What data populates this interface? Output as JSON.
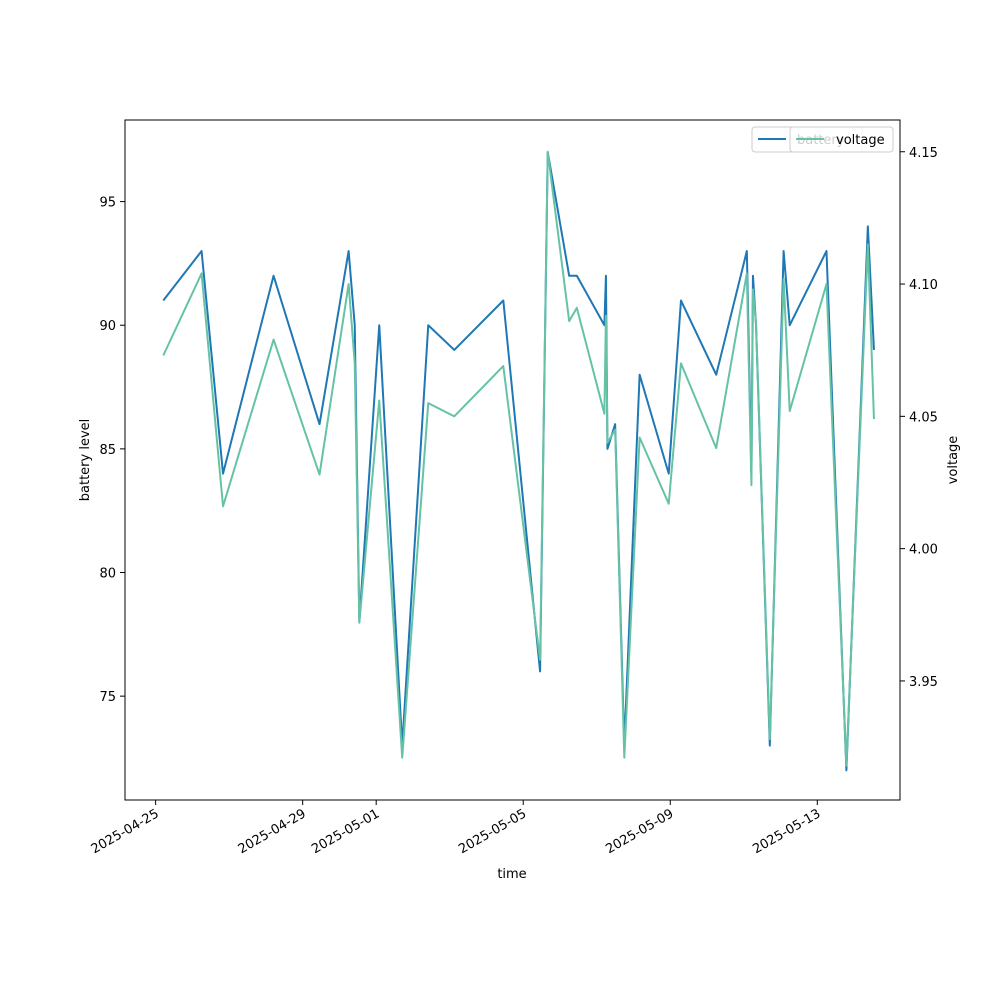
{
  "chart_data": {
    "type": "line",
    "xlabel": "time",
    "ylabel": "battery level",
    "y2label": "voltage",
    "xlim": [
      "2025-04-24T04:00",
      "2025-05-15T06:00"
    ],
    "ylim": [
      70.8,
      98.3
    ],
    "y2lim": [
      3.905,
      4.162
    ],
    "x_ticks": [
      "2025-04-25",
      "2025-04-29",
      "2025-05-01",
      "2025-05-05",
      "2025-05-09",
      "2025-05-13"
    ],
    "y_ticks": [
      75,
      80,
      85,
      90,
      95
    ],
    "y2_ticks": [
      3.95,
      4.0,
      4.05,
      4.1,
      4.15
    ],
    "y2_tick_labels": [
      "3.95",
      "4.00",
      "4.05",
      "4.10",
      "4.15"
    ],
    "legend_placement": "upper-right",
    "grid": false,
    "series": [
      {
        "name": "battery",
        "axis": "left",
        "color": "#1f77b4",
        "points": [
          [
            "2025-04-25T05:00",
            91
          ],
          [
            "2025-04-26T06:00",
            93
          ],
          [
            "2025-04-26T20:00",
            84
          ],
          [
            "2025-04-28T05:00",
            92
          ],
          [
            "2025-04-29T11:00",
            86
          ],
          [
            "2025-04-30T06:00",
            93
          ],
          [
            "2025-04-30T10:00",
            90
          ],
          [
            "2025-04-30T13:00",
            78
          ],
          [
            "2025-05-01T02:00",
            90
          ],
          [
            "2025-05-01T17:00",
            73
          ],
          [
            "2025-05-02T10:00",
            90
          ],
          [
            "2025-05-03T03:00",
            89
          ],
          [
            "2025-05-04T11:00",
            91
          ],
          [
            "2025-05-05T11:00",
            76
          ],
          [
            "2025-05-05T16:00",
            97
          ],
          [
            "2025-05-06T06:00",
            92
          ],
          [
            "2025-05-06T11:00",
            92
          ],
          [
            "2025-05-07T05:00",
            90
          ],
          [
            "2025-05-07T06:00",
            92
          ],
          [
            "2025-05-07T07:00",
            85
          ],
          [
            "2025-05-07T12:00",
            86
          ],
          [
            "2025-05-07T18:00",
            73
          ],
          [
            "2025-05-08T04:00",
            88
          ],
          [
            "2025-05-08T23:00",
            84
          ],
          [
            "2025-05-09T07:00",
            91
          ],
          [
            "2025-05-10T06:00",
            88
          ],
          [
            "2025-05-11T02:00",
            93
          ],
          [
            "2025-05-11T05:00",
            84
          ],
          [
            "2025-05-11T06:00",
            92
          ],
          [
            "2025-05-11T08:00",
            90
          ],
          [
            "2025-05-11T17:00",
            73
          ],
          [
            "2025-05-12T02:00",
            93
          ],
          [
            "2025-05-12T06:00",
            90
          ],
          [
            "2025-05-13T06:00",
            93
          ],
          [
            "2025-05-13T19:00",
            72
          ],
          [
            "2025-05-14T09:00",
            94
          ],
          [
            "2025-05-14T13:00",
            89
          ]
        ]
      },
      {
        "name": "voltage",
        "axis": "right",
        "color": "#66c2a5",
        "points": [
          [
            "2025-04-25T05:00",
            4.073
          ],
          [
            "2025-04-26T06:00",
            4.104
          ],
          [
            "2025-04-26T20:00",
            4.016
          ],
          [
            "2025-04-28T05:00",
            4.079
          ],
          [
            "2025-04-29T11:00",
            4.028
          ],
          [
            "2025-04-30T06:00",
            4.1
          ],
          [
            "2025-04-30T10:00",
            4.07
          ],
          [
            "2025-04-30T13:00",
            3.972
          ],
          [
            "2025-05-01T02:00",
            4.056
          ],
          [
            "2025-05-01T17:00",
            3.921
          ],
          [
            "2025-05-02T10:00",
            4.055
          ],
          [
            "2025-05-03T03:00",
            4.05
          ],
          [
            "2025-05-04T11:00",
            4.069
          ],
          [
            "2025-05-05T11:00",
            3.958
          ],
          [
            "2025-05-05T16:00",
            4.15
          ],
          [
            "2025-05-06T06:00",
            4.086
          ],
          [
            "2025-05-06T11:00",
            4.091
          ],
          [
            "2025-05-07T05:00",
            4.051
          ],
          [
            "2025-05-07T06:00",
            4.088
          ],
          [
            "2025-05-07T07:00",
            4.04
          ],
          [
            "2025-05-07T12:00",
            4.045
          ],
          [
            "2025-05-07T18:00",
            3.921
          ],
          [
            "2025-05-08T04:00",
            4.042
          ],
          [
            "2025-05-08T23:00",
            4.017
          ],
          [
            "2025-05-09T07:00",
            4.07
          ],
          [
            "2025-05-10T06:00",
            4.038
          ],
          [
            "2025-05-11T02:00",
            4.104
          ],
          [
            "2025-05-11T05:00",
            4.024
          ],
          [
            "2025-05-11T06:00",
            4.098
          ],
          [
            "2025-05-11T08:00",
            4.085
          ],
          [
            "2025-05-11T17:00",
            3.928
          ],
          [
            "2025-05-12T02:00",
            4.102
          ],
          [
            "2025-05-12T06:00",
            4.052
          ],
          [
            "2025-05-13T06:00",
            4.1
          ],
          [
            "2025-05-13T19:00",
            3.918
          ],
          [
            "2025-05-14T09:00",
            4.115
          ],
          [
            "2025-05-14T13:00",
            4.049
          ]
        ]
      }
    ]
  }
}
